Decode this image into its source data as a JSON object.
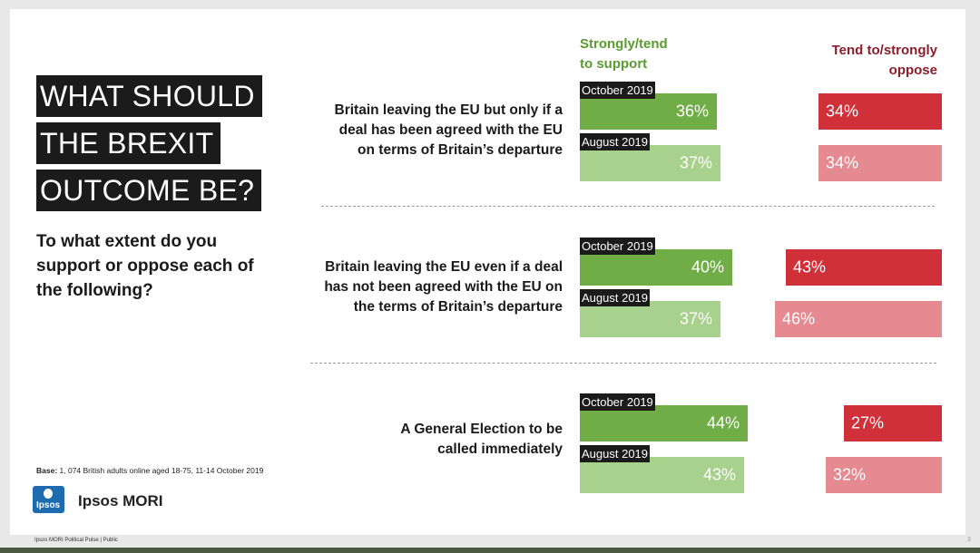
{
  "title_lines": [
    "WHAT SHOULD",
    "THE BREXIT",
    "OUTCOME BE?"
  ],
  "question": "To what extent do you support or oppose each of the following?",
  "base_label": "Base:",
  "base_text": " 1, 074 British adults online aged 18-75,  11-14 October 2019",
  "brand": "Ipsos MORI",
  "logo_text": "Ipsos",
  "footer": "Ipsos MORI Political Pulse | Public",
  "page_number": "3",
  "colors": {
    "support_current": "#70ad47",
    "support_previous": "#a9d18e",
    "oppose_current": "#d0303a",
    "oppose_previous": "#e48a90"
  },
  "chart_data": {
    "type": "bar",
    "series_names": [
      "Strongly/tend to support",
      "Tend to/strongly oppose"
    ],
    "support_header": [
      "Strongly/tend",
      "to support"
    ],
    "oppose_header": [
      "Tend to/strongly",
      "oppose"
    ],
    "periods": [
      "October 2019",
      "August 2019"
    ],
    "categories": [
      {
        "label_lines": [
          "Britain leaving the EU but only if a",
          "deal has been agreed with the EU",
          "on terms of Britain’s departure"
        ],
        "rows": [
          {
            "period": "October 2019",
            "support": 36,
            "oppose": 34
          },
          {
            "period": "August 2019",
            "support": 37,
            "oppose": 34
          }
        ]
      },
      {
        "label_lines": [
          "Britain leaving the EU even if a deal",
          "has not been agreed with the EU on",
          "the terms of Britain’s departure"
        ],
        "rows": [
          {
            "period": "October 2019",
            "support": 40,
            "oppose": 43
          },
          {
            "period": "August 2019",
            "support": 37,
            "oppose": 46
          }
        ]
      },
      {
        "label_lines": [
          "A General Election to be",
          "called immediately"
        ],
        "rows": [
          {
            "period": "October 2019",
            "support": 44,
            "oppose": 27
          },
          {
            "period": "August 2019",
            "support": 43,
            "oppose": 32
          }
        ]
      }
    ]
  }
}
